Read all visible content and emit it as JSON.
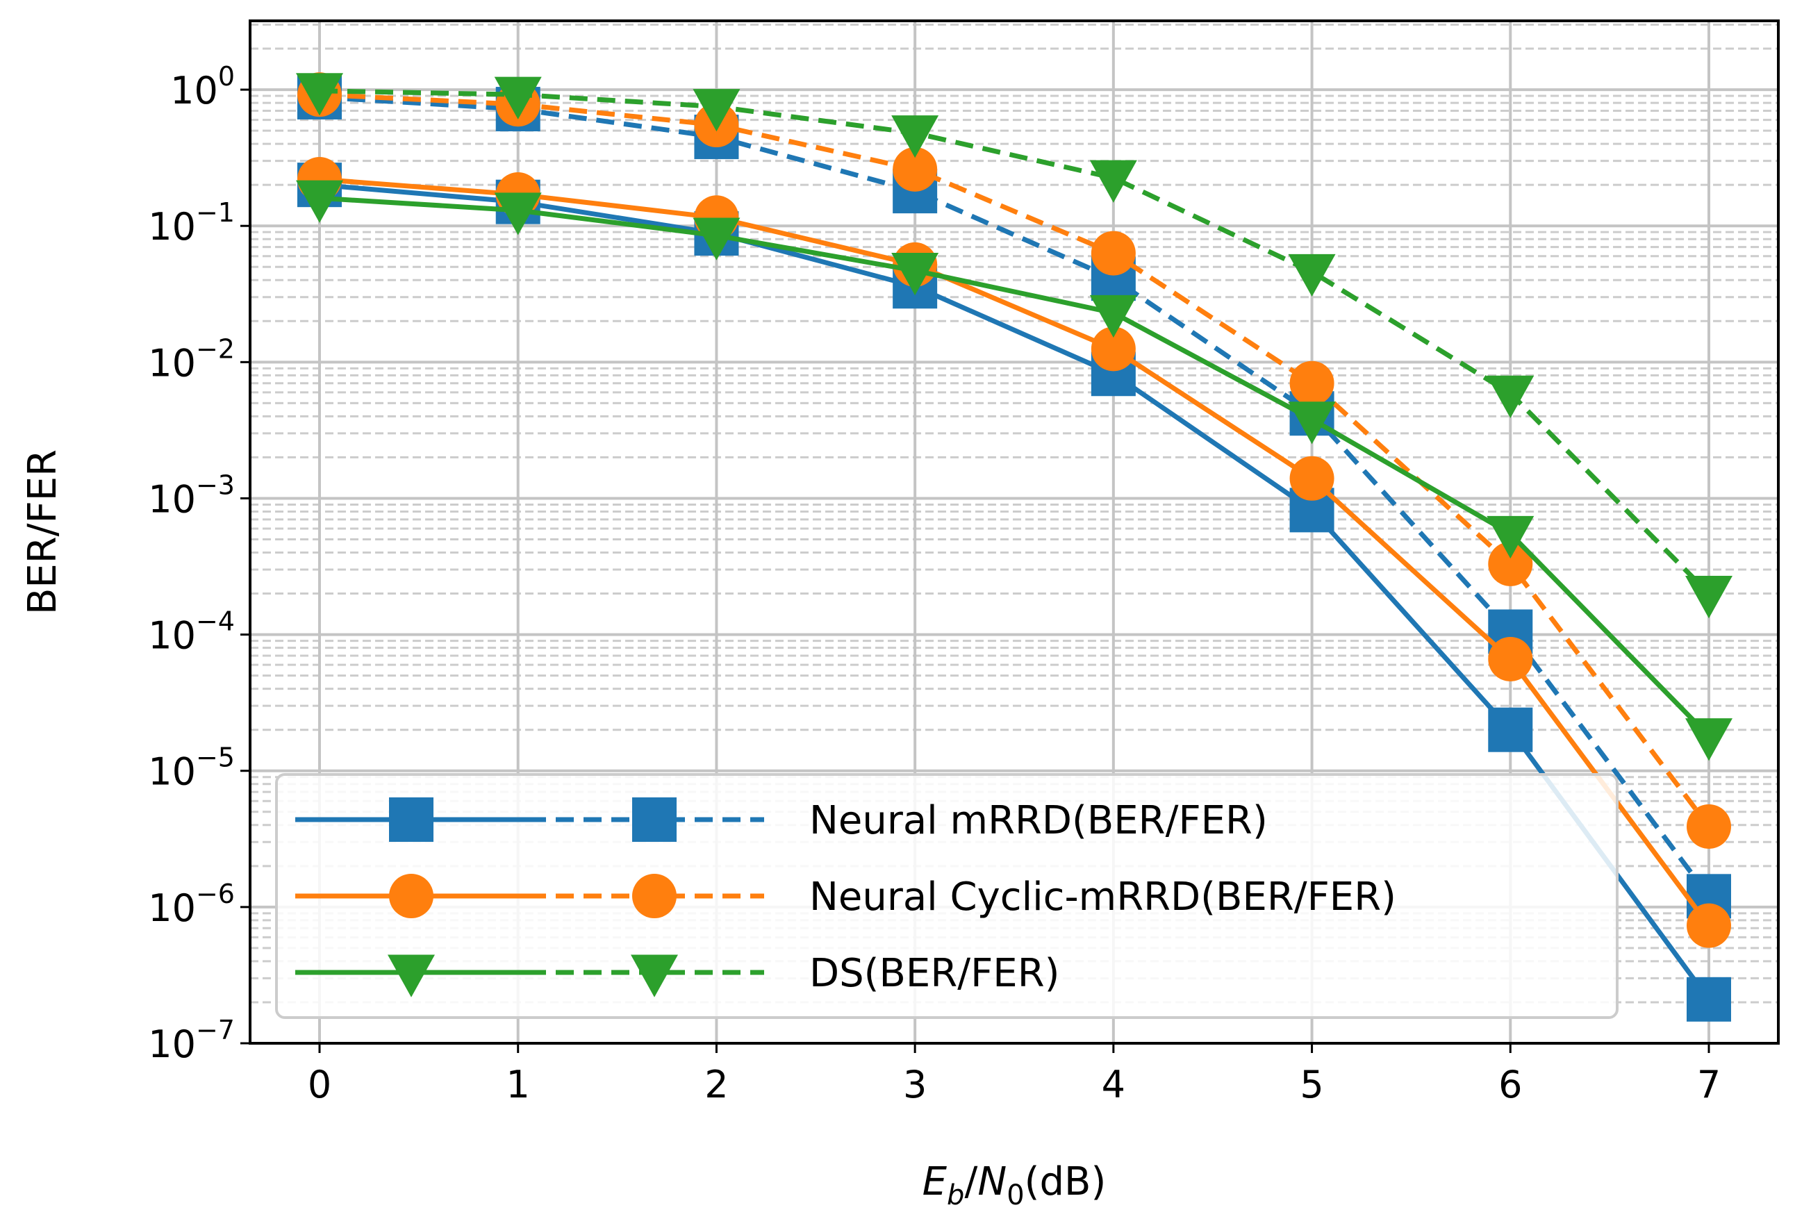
{
  "chart_data": {
    "type": "line",
    "title": "",
    "xlabel": "E_b/N_0(dB)",
    "xlabel_parts": {
      "e": "E",
      "e_sub": "b",
      "slash": "/",
      "n": "N",
      "n_sub": "0",
      "unit": "(dB)"
    },
    "ylabel": "BER/FER",
    "y_scale": "log",
    "xlim": [
      -0.35,
      7.35
    ],
    "ylim": [
      1e-07,
      3.2
    ],
    "x": [
      0,
      1,
      2,
      3,
      4,
      5,
      6,
      7
    ],
    "x_tick_labels": [
      "0",
      "1",
      "2",
      "3",
      "4",
      "5",
      "6",
      "7"
    ],
    "y_ticks": [
      {
        "value": 1,
        "base": "10",
        "exp": "0"
      },
      {
        "value": 0.1,
        "base": "10",
        "exp": "−1"
      },
      {
        "value": 0.01,
        "base": "10",
        "exp": "−2"
      },
      {
        "value": 0.001,
        "base": "10",
        "exp": "−3"
      },
      {
        "value": 0.0001,
        "base": "10",
        "exp": "−4"
      },
      {
        "value": 1e-05,
        "base": "10",
        "exp": "−5"
      },
      {
        "value": 1e-06,
        "base": "10",
        "exp": "−6"
      },
      {
        "value": 1e-07,
        "base": "10",
        "exp": "−7"
      }
    ],
    "grid": {
      "major": true,
      "minor": true
    },
    "legend": {
      "placement": "lower-left",
      "entries": [
        {
          "label": "Neural mRRD(BER/FER)",
          "series": [
            "mrrd-ber",
            "mrrd-fer"
          ]
        },
        {
          "label": "Neural Cyclic-mRRD(BER/FER)",
          "series": [
            "cyclic-ber",
            "cyclic-fer"
          ]
        },
        {
          "label": " DS(BER/FER)",
          "series": [
            "ds-ber",
            "ds-fer"
          ]
        }
      ]
    },
    "series": [
      {
        "id": "mrrd-ber",
        "name": "Neural mRRD BER",
        "style": "solid",
        "marker": "square",
        "color": "#1f77b4",
        "values": [
          0.2,
          0.15,
          0.088,
          0.036,
          0.0082,
          0.00082,
          2e-05,
          2.1e-07
        ]
      },
      {
        "id": "mrrd-fer",
        "name": "Neural mRRD FER",
        "style": "dashed",
        "marker": "square",
        "color": "#1f77b4",
        "values": [
          0.88,
          0.72,
          0.45,
          0.18,
          0.041,
          0.0042,
          0.000105,
          1.2e-06
        ]
      },
      {
        "id": "cyclic-ber",
        "name": "Neural Cyclic-mRRD BER",
        "style": "solid",
        "marker": "circle",
        "color": "#ff7f0e",
        "values": [
          0.22,
          0.17,
          0.115,
          0.052,
          0.0125,
          0.0014,
          6.6e-05,
          7.3e-07
        ]
      },
      {
        "id": "cyclic-fer",
        "name": "Neural Cyclic-mRRD FER",
        "style": "dashed",
        "marker": "circle",
        "color": "#ff7f0e",
        "values": [
          0.92,
          0.78,
          0.55,
          0.26,
          0.063,
          0.007,
          0.00033,
          3.9e-06
        ]
      },
      {
        "id": "ds-ber",
        "name": "DS BER",
        "style": "solid",
        "marker": "triangle-down",
        "color": "#2ca02c",
        "values": [
          0.16,
          0.13,
          0.085,
          0.047,
          0.023,
          0.0038,
          0.00055,
          1.8e-05
        ]
      },
      {
        "id": "ds-fer",
        "name": "DS FER",
        "style": "dashed",
        "marker": "triangle-down",
        "color": "#2ca02c",
        "values": [
          0.98,
          0.92,
          0.75,
          0.48,
          0.225,
          0.046,
          0.0059,
          0.0002
        ]
      }
    ]
  }
}
